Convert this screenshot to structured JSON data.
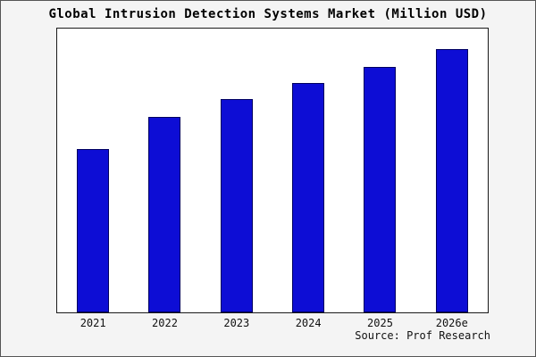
{
  "chart_data": {
    "type": "bar",
    "title": "Global Intrusion Detection Systems Market (Million USD)",
    "categories": [
      "2021",
      "2022",
      "2023",
      "2024",
      "2025",
      "2026e"
    ],
    "values": [
      62,
      74,
      81,
      87,
      93,
      100
    ],
    "ylim": [
      0,
      107
    ],
    "xlabel": "",
    "ylabel": "",
    "grid": false,
    "legend": false,
    "y_axis_ticks_shown": false,
    "bar_color": "#0d0dd5",
    "bar_border_color": "#000060",
    "plot_background": "#ffffff",
    "outer_background": "#f4f4f4"
  },
  "footer": {
    "source": "Source: Prof Research"
  }
}
